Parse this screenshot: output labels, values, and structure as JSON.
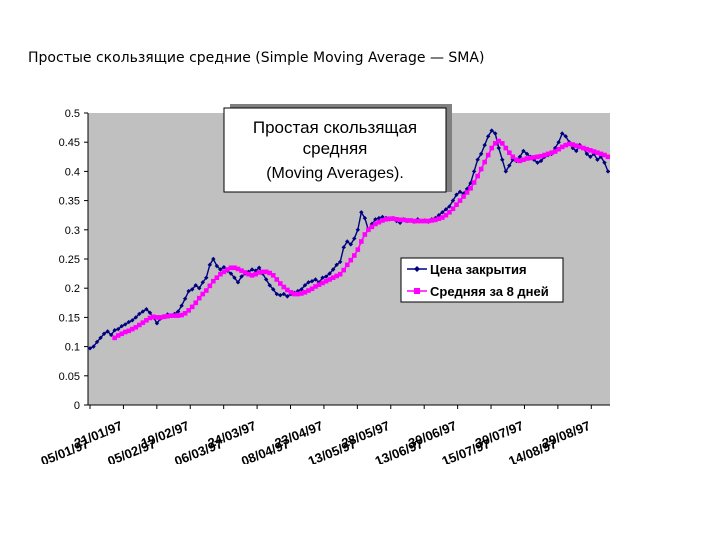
{
  "slide": {
    "title": "Простые скользящие средние (Simple Moving Average — SMA)"
  },
  "chart_data": {
    "type": "line",
    "title_lines": [
      "Простая скользящая",
      "средняя",
      "(Moving Averages)."
    ],
    "xlabel": "",
    "ylabel": "",
    "ylim": [
      0,
      0.5
    ],
    "yticks": [
      "0",
      "0.05",
      "0.1",
      "0.15",
      "0.2",
      "0.25",
      "0.3",
      "0.35",
      "0.4",
      "0.45",
      "0.5"
    ],
    "xticks": [
      "05/01/97",
      "21/01/97",
      "05/02/97",
      "19/02/97",
      "06/03/97",
      "24/03/97",
      "08/04/97",
      "23/04/97",
      "13/05/97",
      "28/05/97",
      "13/06/97",
      "30/06/97",
      "15/07/97",
      "30/07/97",
      "14/08/97",
      "29/08/97"
    ],
    "grid": false,
    "legend_position": "right",
    "colors": {
      "plot_bg": "#c0c0c0",
      "chart_bg": "#ffffff",
      "close": "#000080",
      "sma": "#ff00ff"
    },
    "series": [
      {
        "name": "Цена закрытия",
        "marker": "diamond",
        "values": [
          0.097,
          0.1,
          0.108,
          0.115,
          0.122,
          0.126,
          0.12,
          0.128,
          0.13,
          0.135,
          0.138,
          0.142,
          0.145,
          0.15,
          0.156,
          0.16,
          0.164,
          0.158,
          0.15,
          0.14,
          0.148,
          0.152,
          0.155,
          0.153,
          0.156,
          0.16,
          0.17,
          0.182,
          0.195,
          0.198,
          0.205,
          0.2,
          0.21,
          0.218,
          0.24,
          0.25,
          0.238,
          0.232,
          0.236,
          0.23,
          0.225,
          0.218,
          0.21,
          0.22,
          0.225,
          0.228,
          0.232,
          0.23,
          0.235,
          0.225,
          0.215,
          0.205,
          0.198,
          0.19,
          0.188,
          0.19,
          0.186,
          0.19,
          0.192,
          0.195,
          0.198,
          0.205,
          0.21,
          0.212,
          0.215,
          0.21,
          0.218,
          0.22,
          0.225,
          0.232,
          0.24,
          0.245,
          0.27,
          0.28,
          0.275,
          0.285,
          0.3,
          0.33,
          0.32,
          0.3,
          0.31,
          0.318,
          0.32,
          0.322,
          0.32,
          0.318,
          0.32,
          0.315,
          0.312,
          0.318,
          0.315,
          0.316,
          0.314,
          0.318,
          0.315,
          0.316,
          0.314,
          0.318,
          0.32,
          0.325,
          0.33,
          0.335,
          0.34,
          0.35,
          0.36,
          0.365,
          0.362,
          0.37,
          0.38,
          0.4,
          0.42,
          0.43,
          0.445,
          0.46,
          0.47,
          0.465,
          0.44,
          0.42,
          0.4,
          0.41,
          0.42,
          0.418,
          0.425,
          0.435,
          0.43,
          0.425,
          0.42,
          0.415,
          0.418,
          0.425,
          0.428,
          0.43,
          0.44,
          0.45,
          0.465,
          0.46,
          0.45,
          0.44,
          0.435,
          0.445,
          0.44,
          0.43,
          0.425,
          0.43,
          0.42,
          0.425,
          0.415,
          0.4
        ]
      },
      {
        "name": "Средняя за 8 дней",
        "marker": "square",
        "values": [
          null,
          null,
          null,
          null,
          null,
          null,
          null,
          0.115,
          0.119,
          0.122,
          0.125,
          0.127,
          0.13,
          0.133,
          0.137,
          0.141,
          0.145,
          0.149,
          0.151,
          0.15,
          0.15,
          0.151,
          0.152,
          0.153,
          0.153,
          0.153,
          0.154,
          0.157,
          0.162,
          0.168,
          0.175,
          0.183,
          0.19,
          0.196,
          0.204,
          0.212,
          0.218,
          0.224,
          0.228,
          0.232,
          0.235,
          0.235,
          0.233,
          0.23,
          0.227,
          0.224,
          0.222,
          0.224,
          0.227,
          0.228,
          0.228,
          0.226,
          0.222,
          0.215,
          0.208,
          0.202,
          0.197,
          0.193,
          0.19,
          0.19,
          0.191,
          0.193,
          0.196,
          0.199,
          0.203,
          0.206,
          0.209,
          0.212,
          0.215,
          0.218,
          0.221,
          0.224,
          0.231,
          0.24,
          0.248,
          0.256,
          0.266,
          0.28,
          0.292,
          0.3,
          0.305,
          0.31,
          0.313,
          0.316,
          0.318,
          0.319,
          0.319,
          0.318,
          0.317,
          0.317,
          0.316,
          0.316,
          0.315,
          0.315,
          0.315,
          0.315,
          0.315,
          0.316,
          0.317,
          0.319,
          0.321,
          0.325,
          0.33,
          0.336,
          0.343,
          0.35,
          0.357,
          0.364,
          0.371,
          0.381,
          0.392,
          0.404,
          0.416,
          0.428,
          0.44,
          0.448,
          0.452,
          0.448,
          0.44,
          0.432,
          0.425,
          0.42,
          0.418,
          0.42,
          0.422,
          0.423,
          0.424,
          0.425,
          0.426,
          0.428,
          0.43,
          0.432,
          0.434,
          0.438,
          0.442,
          0.445,
          0.447,
          0.446,
          0.444,
          0.442,
          0.44,
          0.438,
          0.436,
          0.434,
          0.432,
          0.43,
          0.428,
          0.425
        ]
      }
    ]
  }
}
